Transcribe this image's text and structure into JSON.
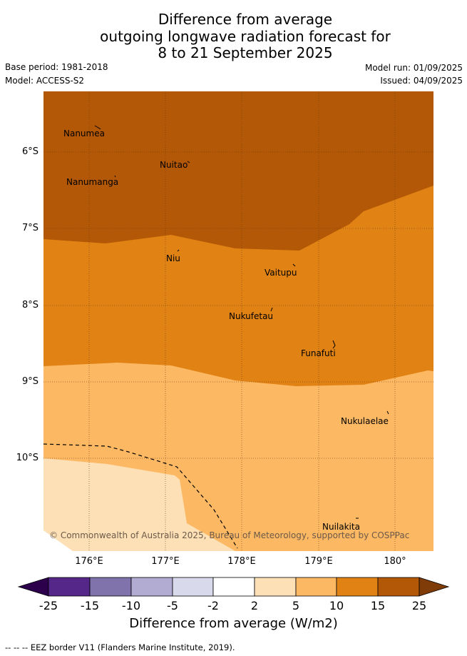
{
  "title": {
    "line1": "Difference from average",
    "line2": "outgoing longwave radiation forecast for",
    "line3": "8 to 21 September 2025"
  },
  "meta": {
    "base_period": "Base period: 1981-2018",
    "model": "Model: ACCESS-S2",
    "model_run": "Model run: 01/09/2025",
    "issued": "Issued: 04/09/2025"
  },
  "map": {
    "lat_labels": [
      "6°S",
      "7°S",
      "8°S",
      "9°S",
      "10°S"
    ],
    "lon_labels": [
      "176°E",
      "177°E",
      "178°E",
      "179°E",
      "180°"
    ],
    "places": [
      {
        "name": "Nanumea"
      },
      {
        "name": "Nuitao"
      },
      {
        "name": "Nanumanga"
      },
      {
        "name": "Niu"
      },
      {
        "name": "Vaitupu"
      },
      {
        "name": "Nukufetau"
      },
      {
        "name": "Funafuti"
      },
      {
        "name": "Nukulaelae"
      },
      {
        "name": "Nuilakita"
      }
    ],
    "copyright": "© Commonwealth of Australia 2025, Bureau of Meteorology, supported by COSPPac",
    "colors": {
      "band_25": "#b35806",
      "band_15": "#e08214",
      "band_10": "#fdb863",
      "band_5": "#fee0b6",
      "band_2": "#ffffff",
      "band_neg2": "#d8daeb",
      "band_neg5": "#b2abd2",
      "band_neg10": "#8073ac",
      "band_neg15": "#542788",
      "band_neg25": "#2d004b",
      "band_over": "#7f3b08"
    }
  },
  "colorbar": {
    "ticks": [
      "-25",
      "-15",
      "-10",
      "-5",
      "-2",
      "2",
      "5",
      "10",
      "15",
      "25"
    ],
    "label": "Difference from average (W/m2)"
  },
  "footer": "--  --  -- EEZ border V11 (Flanders Marine Institute, 2019)."
}
